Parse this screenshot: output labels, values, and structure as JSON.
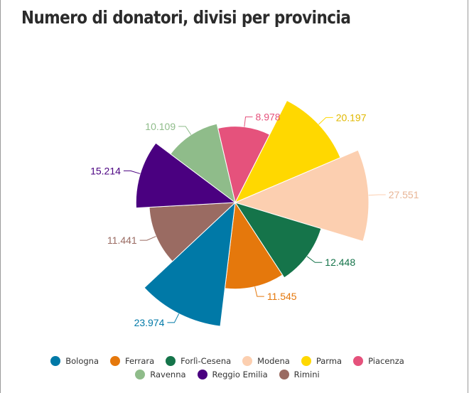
{
  "title": "Numero di donatori, divisi per provincia",
  "chart_data": {
    "type": "polar-area",
    "title": "Numero di donatori, divisi per provincia",
    "slices": [
      {
        "name": "Piacenza",
        "value": 8978,
        "label": "8.978",
        "color": "#e5527c"
      },
      {
        "name": "Parma",
        "value": 20197,
        "label": "20.197",
        "color": "#ffd800"
      },
      {
        "name": "Modena",
        "value": 27551,
        "label": "27.551",
        "color": "#fccfb0"
      },
      {
        "name": "Forlì-Cesena",
        "value": 12448,
        "label": "12.448",
        "color": "#15744a"
      },
      {
        "name": "Ferrara",
        "value": 11545,
        "label": "11.545",
        "color": "#e5780c"
      },
      {
        "name": "Bologna",
        "value": 23974,
        "label": "23.974",
        "color": "#0079a7"
      },
      {
        "name": "Rimini",
        "value": 11441,
        "label": "11.441",
        "color": "#9a6b62"
      },
      {
        "name": "Reggio Emilia",
        "value": 15214,
        "label": "15.214",
        "color": "#4a0080"
      },
      {
        "name": "Ravenna",
        "value": 10109,
        "label": "10.109",
        "color": "#8fbc8a"
      }
    ],
    "legend": {
      "position": "bottom",
      "rows": [
        [
          "Bologna",
          "Ferrara",
          "Forlì-Cesena",
          "Modena",
          "Parma",
          "Piacenza"
        ],
        [
          "Ravenna",
          "Reggio Emilia",
          "Rimini"
        ]
      ]
    }
  }
}
